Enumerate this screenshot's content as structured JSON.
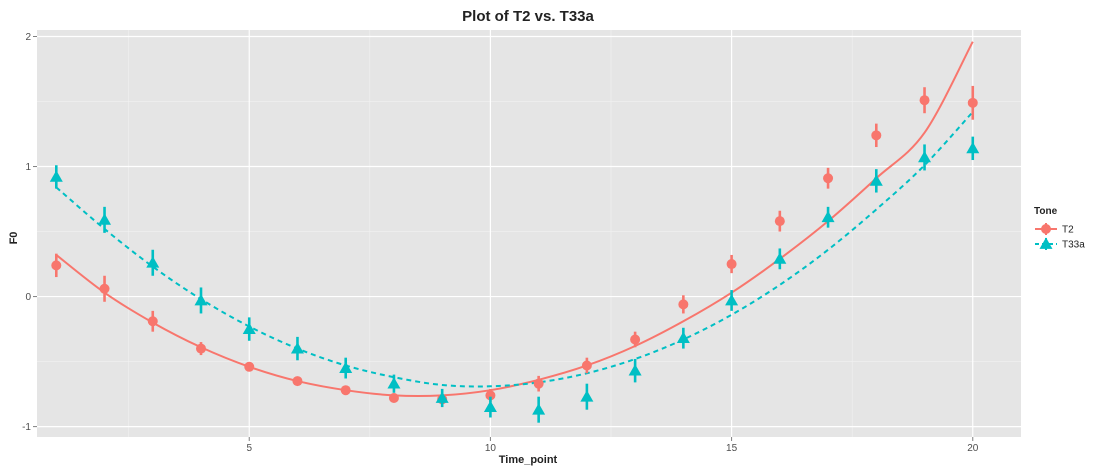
{
  "chart_data": {
    "type": "scatter",
    "title": "Plot of T2 vs. T33a",
    "xlabel": "Time_point",
    "ylabel": "F0",
    "xlim": [
      0.6,
      21
    ],
    "ylim": [
      -1.08,
      2.05
    ],
    "x_ticks": [
      5,
      10,
      15,
      20
    ],
    "x_tick_labels": [
      "5",
      "10",
      "15",
      "20"
    ],
    "y_ticks": [
      -1,
      0,
      1,
      2
    ],
    "y_tick_labels": [
      "-1",
      "0",
      "1",
      "2"
    ],
    "grid": true,
    "background": "#e5e5e5",
    "legend": {
      "title": "Tone",
      "placement": "right",
      "entries": [
        "T2",
        "T33a"
      ]
    },
    "x": [
      1,
      2,
      3,
      4,
      5,
      6,
      7,
      8,
      9,
      10,
      11,
      12,
      13,
      14,
      15,
      16,
      17,
      18,
      19,
      20
    ],
    "series": [
      {
        "name": "T2",
        "color": "#f8766d",
        "marker": "circle",
        "line_style": "solid",
        "values": [
          0.24,
          0.06,
          -0.19,
          -0.4,
          -0.54,
          -0.65,
          -0.72,
          -0.78,
          -0.79,
          -0.76,
          -0.67,
          -0.53,
          -0.33,
          -0.06,
          0.25,
          0.58,
          0.91,
          1.24,
          1.51,
          1.49
        ],
        "error": [
          0.09,
          0.1,
          0.08,
          0.05,
          0.03,
          0.03,
          0.03,
          0.03,
          0.04,
          0.05,
          0.06,
          0.06,
          0.06,
          0.07,
          0.07,
          0.08,
          0.08,
          0.09,
          0.1,
          0.13
        ],
        "fit": [
          0.32,
          0.03,
          -0.2,
          -0.39,
          -0.54,
          -0.65,
          -0.72,
          -0.76,
          -0.76,
          -0.72,
          -0.64,
          -0.53,
          -0.38,
          -0.19,
          0.03,
          0.29,
          0.58,
          0.91,
          1.26,
          1.96
        ]
      },
      {
        "name": "T33a",
        "color": "#00bfc4",
        "marker": "triangle",
        "line_style": "dashed",
        "values": [
          0.92,
          0.59,
          0.26,
          -0.03,
          -0.25,
          -0.4,
          -0.55,
          -0.67,
          -0.78,
          -0.85,
          -0.87,
          -0.77,
          -0.57,
          -0.32,
          -0.03,
          0.29,
          0.61,
          0.89,
          1.07,
          1.14
        ],
        "error": [
          0.09,
          0.1,
          0.1,
          0.1,
          0.09,
          0.09,
          0.08,
          0.07,
          0.07,
          0.08,
          0.1,
          0.1,
          0.09,
          0.08,
          0.08,
          0.08,
          0.08,
          0.09,
          0.1,
          0.09
        ],
        "fit": [
          0.84,
          0.52,
          0.23,
          -0.02,
          -0.23,
          -0.4,
          -0.53,
          -0.62,
          -0.68,
          -0.69,
          -0.66,
          -0.59,
          -0.48,
          -0.33,
          -0.14,
          0.09,
          0.36,
          0.67,
          1.01,
          1.42
        ]
      }
    ]
  }
}
